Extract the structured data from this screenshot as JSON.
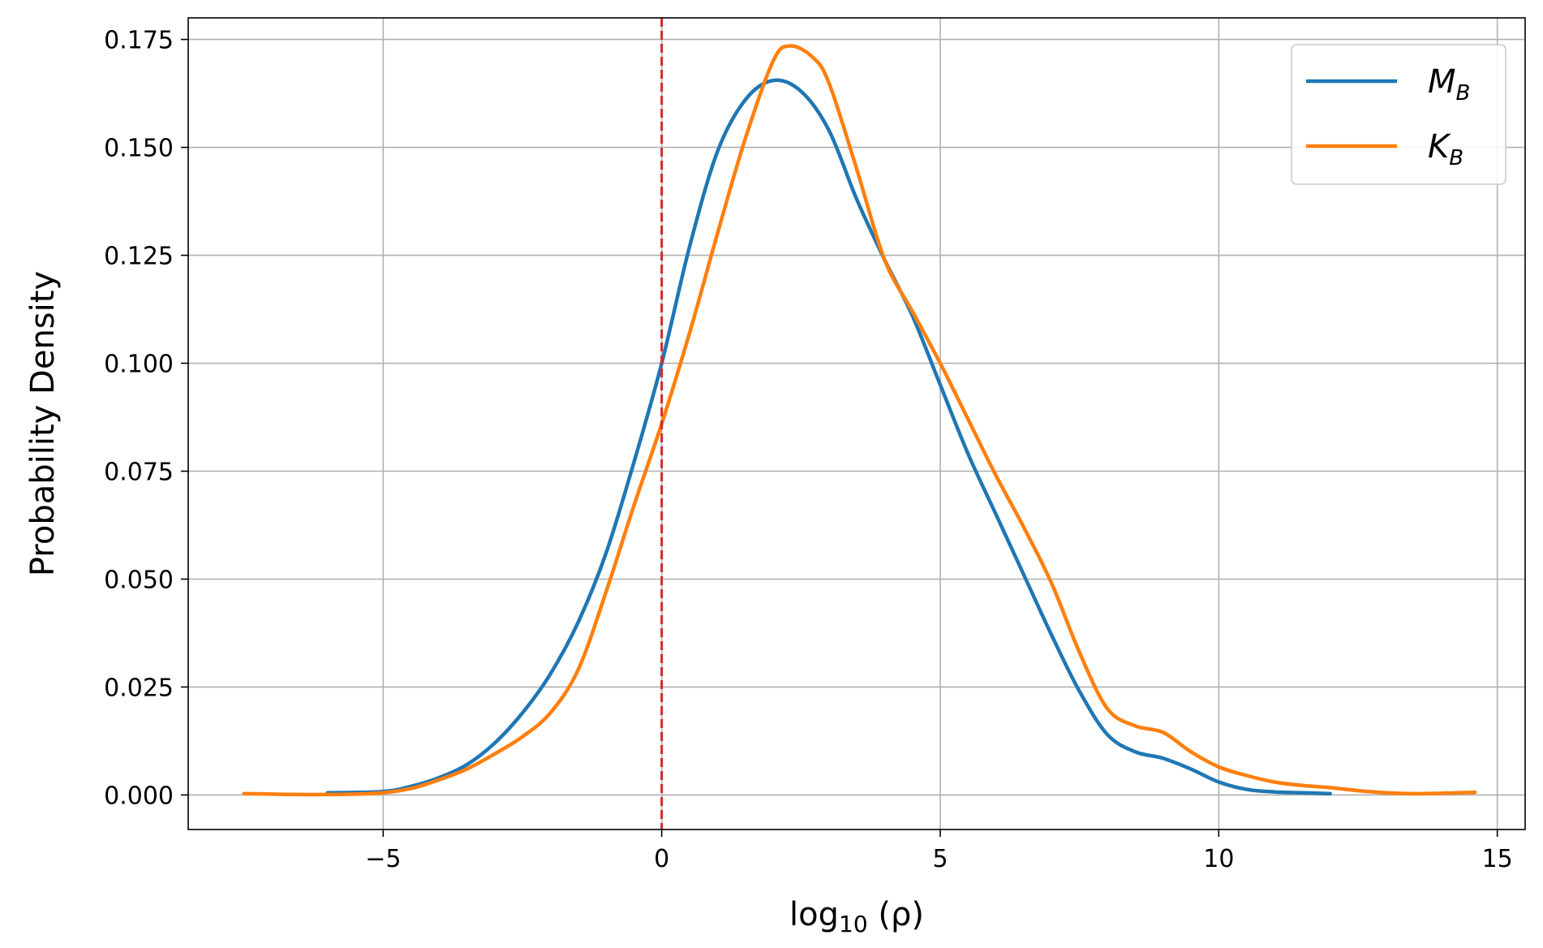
{
  "chart_data": {
    "type": "line",
    "xlabel": "log10(ρ)",
    "xlabel_parts": {
      "base": "log",
      "sub": "10",
      "rest": " (ρ)"
    },
    "ylabel": "Probability Density",
    "xlim": [
      -8.5,
      15.5
    ],
    "ylim": [
      -0.008,
      0.18
    ],
    "x_ticks": [
      -5,
      0,
      5,
      10,
      15
    ],
    "x_tick_labels": [
      "−5",
      "0",
      "5",
      "10",
      "15"
    ],
    "y_ticks": [
      0.0,
      0.025,
      0.05,
      0.075,
      0.1,
      0.125,
      0.15,
      0.175
    ],
    "y_tick_labels": [
      "0.000",
      "0.025",
      "0.050",
      "0.075",
      "0.100",
      "0.125",
      "0.150",
      "0.175"
    ],
    "grid": true,
    "legend_position": "upper-right",
    "vline": {
      "x": 0,
      "color": "#d62728",
      "style": "dashed"
    },
    "series": [
      {
        "name": "M_B",
        "label_main": "M",
        "label_sub": "B",
        "color": "#1f77b4",
        "points": [
          [
            -6,
            0.0005
          ],
          [
            -5,
            0.0008
          ],
          [
            -4.5,
            0.002
          ],
          [
            -4,
            0.004
          ],
          [
            -3.5,
            0.007
          ],
          [
            -3,
            0.012
          ],
          [
            -2.5,
            0.019
          ],
          [
            -2,
            0.028
          ],
          [
            -1.5,
            0.04
          ],
          [
            -1,
            0.056
          ],
          [
            -0.5,
            0.077
          ],
          [
            0,
            0.1
          ],
          [
            0.5,
            0.127
          ],
          [
            1,
            0.149
          ],
          [
            1.5,
            0.161
          ],
          [
            2,
            0.1655
          ],
          [
            2.5,
            0.163
          ],
          [
            3,
            0.154
          ],
          [
            3.5,
            0.138
          ],
          [
            4,
            0.124
          ],
          [
            4.5,
            0.111
          ],
          [
            5,
            0.095
          ],
          [
            5.5,
            0.079
          ],
          [
            6,
            0.065
          ],
          [
            6.5,
            0.051
          ],
          [
            7,
            0.037
          ],
          [
            7.5,
            0.024
          ],
          [
            8,
            0.014
          ],
          [
            8.5,
            0.01
          ],
          [
            9,
            0.0085
          ],
          [
            9.5,
            0.006
          ],
          [
            10,
            0.003
          ],
          [
            10.5,
            0.0013
          ],
          [
            11,
            0.0007
          ],
          [
            11.5,
            0.0005
          ],
          [
            12,
            0.0003
          ]
        ]
      },
      {
        "name": "K_B",
        "label_main": "K",
        "label_sub": "B",
        "color": "#ff7f0e",
        "points": [
          [
            -7.5,
            0.0003
          ],
          [
            -7,
            0.0002
          ],
          [
            -6.5,
            0.0001
          ],
          [
            -6,
            0.0001
          ],
          [
            -5.5,
            0.0002
          ],
          [
            -5,
            0.0005
          ],
          [
            -4.5,
            0.0015
          ],
          [
            -4,
            0.0035
          ],
          [
            -3.5,
            0.006
          ],
          [
            -3,
            0.0095
          ],
          [
            -2.5,
            0.0135
          ],
          [
            -2,
            0.019
          ],
          [
            -1.5,
            0.029
          ],
          [
            -1,
            0.047
          ],
          [
            -0.5,
            0.067
          ],
          [
            0,
            0.086
          ],
          [
            0.5,
            0.107
          ],
          [
            1,
            0.13
          ],
          [
            1.5,
            0.152
          ],
          [
            2,
            0.17
          ],
          [
            2.3,
            0.1735
          ],
          [
            2.7,
            0.171
          ],
          [
            3,
            0.165
          ],
          [
            3.5,
            0.145
          ],
          [
            4,
            0.124
          ],
          [
            4.5,
            0.112
          ],
          [
            5,
            0.1
          ],
          [
            5.5,
            0.087
          ],
          [
            6,
            0.074
          ],
          [
            6.5,
            0.062
          ],
          [
            7,
            0.049
          ],
          [
            7.5,
            0.033
          ],
          [
            8,
            0.02
          ],
          [
            8.5,
            0.016
          ],
          [
            9,
            0.0145
          ],
          [
            9.5,
            0.01
          ],
          [
            10,
            0.0065
          ],
          [
            10.5,
            0.0045
          ],
          [
            11,
            0.003
          ],
          [
            11.5,
            0.0022
          ],
          [
            12,
            0.0017
          ],
          [
            12.5,
            0.001
          ],
          [
            13,
            0.0005
          ],
          [
            13.5,
            0.0003
          ],
          [
            14,
            0.0004
          ],
          [
            14.6,
            0.0006
          ]
        ]
      }
    ]
  }
}
